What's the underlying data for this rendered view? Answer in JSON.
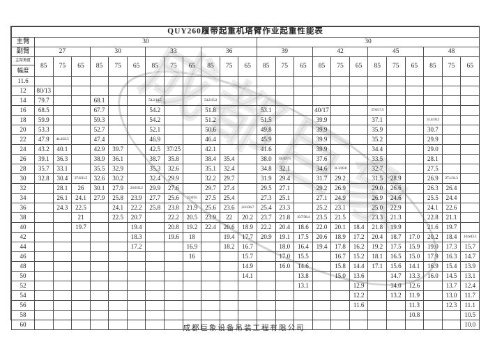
{
  "title": "QUY260履带起重机塔臂作业起重性能表",
  "footer": "成都巨象设备吊装工程有限公司",
  "watermark": "成都巨象",
  "labels": {
    "main_boom": "主臂",
    "jib": "副臂",
    "boom_angle": "主臂角度",
    "radius": "幅度"
  },
  "main_boom_values": [
    "30",
    "30"
  ],
  "jib_lengths": [
    "27",
    "30",
    "33",
    "36",
    "39",
    "42",
    "45",
    "48"
  ],
  "angles": [
    "85",
    "75",
    "65"
  ],
  "rows": [
    {
      "radius": "11.6",
      "values": [
        "",
        "",
        "",
        "",
        "",
        "",
        "",
        "",
        "",
        "",
        "",
        "",
        "",
        "",
        "",
        "",
        "",
        "",
        "",
        "",
        "",
        "",
        "",
        ""
      ]
    },
    {
      "radius": "12",
      "values": [
        "80/13",
        "",
        "",
        "",
        "",
        "",
        "",
        "",
        "",
        "",
        "",
        "",
        "",
        "",
        "",
        "",
        "",
        "",
        "",
        "",
        "",
        "",
        "",
        ""
      ]
    },
    {
      "radius": "14",
      "values": [
        "79.7",
        "",
        "",
        "68.1",
        "",
        "",
        "54.2/14.5",
        "",
        "",
        "54.2/15.2",
        "",
        "",
        "",
        "",
        "",
        "",
        "",
        "",
        "",
        "",
        "",
        "",
        "",
        ""
      ]
    },
    {
      "radius": "16",
      "values": [
        "68.5",
        "",
        "",
        "67.7",
        "",
        "",
        "54.2",
        "",
        "",
        "51.8",
        "",
        "",
        "53.1",
        "",
        "",
        "40/17",
        "",
        "",
        "37.6/17.5",
        "",
        "",
        "",
        "",
        ""
      ]
    },
    {
      "radius": "18",
      "values": [
        "59.9",
        "",
        "",
        "59.3",
        "",
        "",
        "54.2",
        "",
        "",
        "51.2",
        "",
        "",
        "51.5",
        "",
        "",
        "39.9",
        "",
        "",
        "37.1",
        "",
        "",
        "31.4/18.3",
        "",
        ""
      ]
    },
    {
      "radius": "20",
      "values": [
        "53.3",
        "",
        "",
        "52.7",
        "",
        "",
        "52.1",
        "",
        "",
        "50.6",
        "",
        "",
        "49.8",
        "",
        "",
        "39.9",
        "",
        "",
        "35.9",
        "",
        "",
        "30.7",
        "",
        ""
      ]
    },
    {
      "radius": "22",
      "values": [
        "47.9",
        "44.4/22.5",
        "",
        "47.4",
        "",
        "",
        "46.9",
        "",
        "",
        "46.4",
        "",
        "",
        "45.9",
        "",
        "",
        "39.9",
        "",
        "",
        "35.2",
        "",
        "",
        "29.9",
        "",
        ""
      ]
    },
    {
      "radius": "24",
      "values": [
        "43.2",
        "40.1",
        "",
        "42.9",
        "39.7",
        "",
        "42.5",
        "37/25",
        "",
        "42.1",
        "",
        "",
        "41.6",
        "",
        "",
        "39.9",
        "",
        "",
        "34.4",
        "",
        "",
        "29.0",
        "",
        ""
      ]
    },
    {
      "radius": "26",
      "values": [
        "39.1",
        "36.3",
        "",
        "38.9",
        "36.1",
        "",
        "38.7",
        "35.8",
        "",
        "38.4",
        "35.4",
        "",
        "38.0",
        "33.4/27.5",
        "",
        "37.6",
        "",
        "",
        "33.5",
        "",
        "",
        "28.1",
        "",
        ""
      ]
    },
    {
      "radius": "28",
      "values": [
        "35.7",
        "33.1",
        "",
        "35.5",
        "32.9",
        "",
        "35.3",
        "32.6",
        "",
        "35.1",
        "32.4",
        "",
        "34.8",
        "32.1",
        "",
        "34.6",
        "31.3/28.8",
        "",
        "32.7",
        "",
        "",
        "27.5",
        "",
        ""
      ]
    },
    {
      "radius": "30",
      "values": [
        "32.8",
        "30.4",
        "27.6/31.5",
        "32.6",
        "30.2",
        "",
        "32.4",
        "29.9",
        "",
        "32.2",
        "29.7",
        "",
        "31.9",
        "29.4",
        "",
        "31.7",
        "29.2",
        "",
        "31.5",
        "28.9",
        "",
        "26.9",
        "27.1/31.3",
        ""
      ]
    },
    {
      "radius": "32",
      "values": [
        "",
        "28.1",
        "26",
        "30.1",
        "27.9",
        "24.6/33.2",
        "29.9",
        "27.6",
        "",
        "29.7",
        "27.4",
        "",
        "29.5",
        "27.1",
        "",
        "29.2",
        "26.9",
        "",
        "29.0",
        "26.6",
        "",
        "26.3",
        "26.4",
        ""
      ]
    },
    {
      "radius": "34",
      "values": [
        "",
        "26.1",
        "24.1",
        "27.9",
        "25.8",
        "23.9",
        "27.7",
        "25.6",
        "23.0/35",
        "27.5",
        "25.4",
        "",
        "27.3",
        "25.1",
        "",
        "27.1",
        "24.9",
        "",
        "26.9",
        "24.6",
        "",
        "25.5",
        "24.4",
        ""
      ]
    },
    {
      "radius": "36",
      "values": [
        "",
        "24.3",
        "22.5",
        "",
        "24.1",
        "22.2",
        "25.8",
        "23.8",
        "21.9",
        "25.6",
        "23.6",
        "21.6/36.7",
        "25.4",
        "23.3",
        "",
        "25.2",
        "23.1",
        "",
        "25.0",
        "22.9",
        "",
        "24.1",
        "22.6",
        ""
      ]
    },
    {
      "radius": "38",
      "values": [
        "",
        "",
        "21",
        "",
        "22.5",
        "20.7",
        "",
        "22.2",
        "20.5",
        "23.9",
        "22",
        "20.2",
        "23.7",
        "21.8",
        "19.7/38.4",
        "23.5",
        "21.5",
        "",
        "23.3",
        "21.3",
        "",
        "22.8",
        "21.1",
        ""
      ]
    },
    {
      "radius": "40",
      "values": [
        "",
        "",
        "19.7",
        "",
        "",
        "19.4",
        "",
        "20.8",
        "19.2",
        "22.4",
        "20.6",
        "18.9",
        "22.2",
        "20.4",
        "18.6",
        "22.0",
        "20.1",
        "18.4",
        "21.8",
        "19.9",
        "",
        "21.6",
        "19.7",
        ""
      ]
    },
    {
      "radius": "42",
      "values": [
        "",
        "",
        "",
        "",
        "",
        "18.3",
        "",
        "19.6",
        "18",
        "",
        "19.4",
        "17.7",
        "20.9",
        "19.1",
        "17.5",
        "20.6",
        "18.9",
        "17.2",
        "20.4",
        "18.7",
        "17.0",
        "20.2",
        "18.4",
        "16.6/43.3"
      ]
    },
    {
      "radius": "44",
      "values": [
        "",
        "",
        "",
        "",
        "",
        "17.2",
        "",
        "",
        "16.9",
        "",
        "18.2",
        "16.7",
        "",
        "18.0",
        "16.4",
        "19.4",
        "17.8",
        "16.2",
        "19.2",
        "17.5",
        "15.9",
        "19.0",
        "17.3",
        "15.7"
      ]
    },
    {
      "radius": "46",
      "values": [
        "",
        "",
        "",
        "",
        "",
        "",
        "",
        "",
        "16",
        "",
        "",
        "15.7",
        "",
        "17.0",
        "15.5",
        "",
        "16.7",
        "15.2",
        "18.1",
        "16.5",
        "15.0",
        "17.9",
        "16.3",
        "14.7"
      ]
    },
    {
      "radius": "48",
      "values": [
        "",
        "",
        "",
        "",
        "",
        "",
        "",
        "",
        "",
        "",
        "",
        "14.9",
        "",
        "16.0",
        "14.6",
        "",
        "15.8",
        "14.4",
        "17.1",
        "15.6",
        "14.1",
        "16.9",
        "15.4",
        "13.9"
      ]
    },
    {
      "radius": "50",
      "values": [
        "",
        "",
        "",
        "",
        "",
        "",
        "",
        "",
        "",
        "",
        "",
        "14.1",
        "",
        "",
        "13.8",
        "",
        "15.0",
        "13.6",
        "",
        "14.7",
        "13.3",
        "16.0",
        "14.5",
        "13.1"
      ]
    },
    {
      "radius": "52",
      "values": [
        "",
        "",
        "",
        "",
        "",
        "",
        "",
        "",
        "",
        "",
        "",
        "",
        "",
        "",
        "13.1",
        "",
        "",
        "12.9",
        "",
        "14.0",
        "12.6",
        "",
        "13.7",
        "12.4"
      ]
    },
    {
      "radius": "54",
      "values": [
        "",
        "",
        "",
        "",
        "",
        "",
        "",
        "",
        "",
        "",
        "",
        "",
        "",
        "",
        "",
        "",
        "",
        "12.2",
        "",
        "13.2",
        "11.9",
        "",
        "13.0",
        "11.7"
      ]
    },
    {
      "radius": "56",
      "values": [
        "",
        "",
        "",
        "",
        "",
        "",
        "",
        "",
        "",
        "",
        "",
        "",
        "",
        "",
        "",
        "",
        "",
        "11.6",
        "",
        "",
        "11.3",
        "",
        "12.3",
        "11.1"
      ]
    },
    {
      "radius": "58",
      "values": [
        "",
        "",
        "",
        "",
        "",
        "",
        "",
        "",
        "",
        "",
        "",
        "",
        "",
        "",
        "",
        "",
        "",
        "",
        "",
        "",
        "10.8",
        "",
        "",
        "10.5"
      ]
    },
    {
      "radius": "60",
      "values": [
        "",
        "",
        "",
        "",
        "",
        "",
        "",
        "",
        "",
        "",
        "",
        "",
        "",
        "",
        "",
        "",
        "",
        "",
        "",
        "",
        "",
        "",
        "",
        "10.0"
      ]
    }
  ]
}
